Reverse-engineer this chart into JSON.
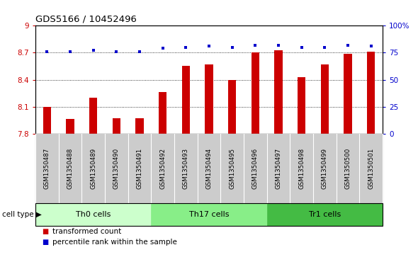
{
  "title": "GDS5166 / 10452496",
  "categories": [
    "GSM1350487",
    "GSM1350488",
    "GSM1350489",
    "GSM1350490",
    "GSM1350491",
    "GSM1350492",
    "GSM1350493",
    "GSM1350494",
    "GSM1350495",
    "GSM1350496",
    "GSM1350497",
    "GSM1350498",
    "GSM1350499",
    "GSM1350500",
    "GSM1350501"
  ],
  "bar_values": [
    8.1,
    7.96,
    8.2,
    7.97,
    7.97,
    8.26,
    8.55,
    8.57,
    8.4,
    8.7,
    8.73,
    8.43,
    8.57,
    8.69,
    8.71
  ],
  "scatter_values": [
    76,
    76,
    77,
    76,
    76,
    79,
    80,
    81,
    80,
    82,
    82,
    80,
    80,
    82,
    81
  ],
  "bar_color": "#cc0000",
  "scatter_color": "#0000cc",
  "ylim_left": [
    7.8,
    9.0
  ],
  "ylim_right": [
    0,
    100
  ],
  "yticks_left": [
    7.8,
    8.1,
    8.4,
    8.7,
    9.0
  ],
  "yticks_right": [
    0,
    25,
    50,
    75,
    100
  ],
  "ytick_labels_left": [
    "7.8",
    "8.1",
    "8.4",
    "8.7",
    "9"
  ],
  "ytick_labels_right": [
    "0",
    "25",
    "50",
    "75",
    "100%"
  ],
  "groups": [
    {
      "label": "Th0 cells",
      "start": 0,
      "end": 5,
      "color": "#ccffcc"
    },
    {
      "label": "Th17 cells",
      "start": 5,
      "end": 10,
      "color": "#88ee88"
    },
    {
      "label": "Tr1 cells",
      "start": 10,
      "end": 15,
      "color": "#44bb44"
    }
  ],
  "cell_type_label": "cell type",
  "legend_bar_label": "transformed count",
  "legend_scatter_label": "percentile rank within the sample",
  "bar_width": 0.35,
  "tick_bg_color": "#cccccc",
  "plot_bg": "#ffffff",
  "dotted_yticks": [
    7.8,
    8.1,
    8.4,
    8.7
  ]
}
